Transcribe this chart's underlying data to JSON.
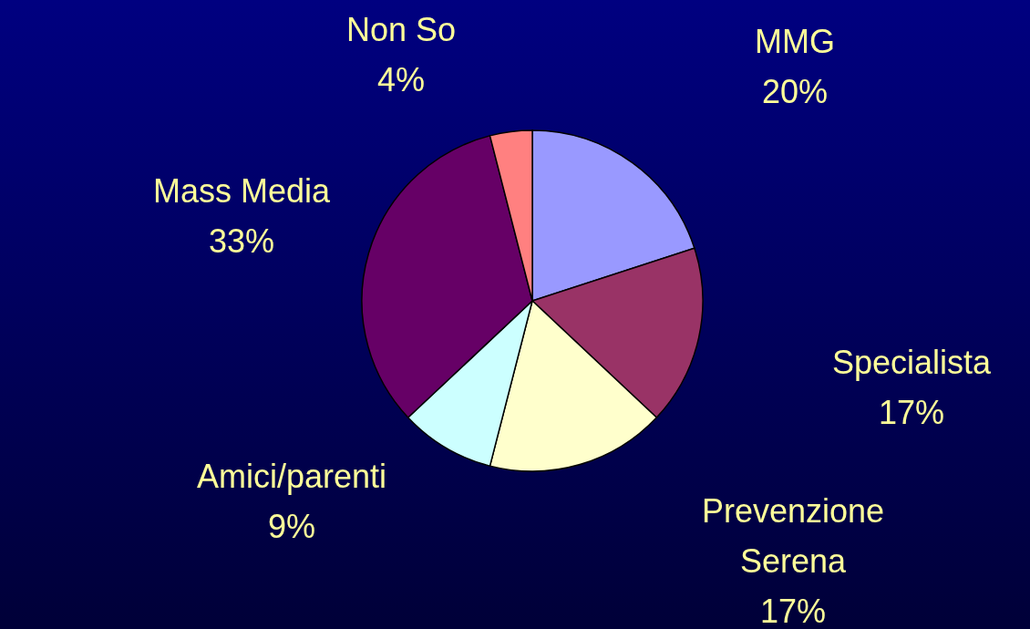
{
  "chart_data": {
    "type": "pie",
    "categories": [
      "MMG",
      "Specialista",
      "Prevenzione Serena",
      "Amici/parenti",
      "Mass Media",
      "Non So"
    ],
    "values": [
      20,
      17,
      17,
      9,
      33,
      4
    ],
    "value_labels": [
      "20%",
      "17%",
      "17%",
      "9%",
      "33%",
      "4%"
    ],
    "colors": [
      "#9999ff",
      "#993366",
      "#ffffcc",
      "#ccffff",
      "#660066",
      "#ff8080"
    ]
  }
}
